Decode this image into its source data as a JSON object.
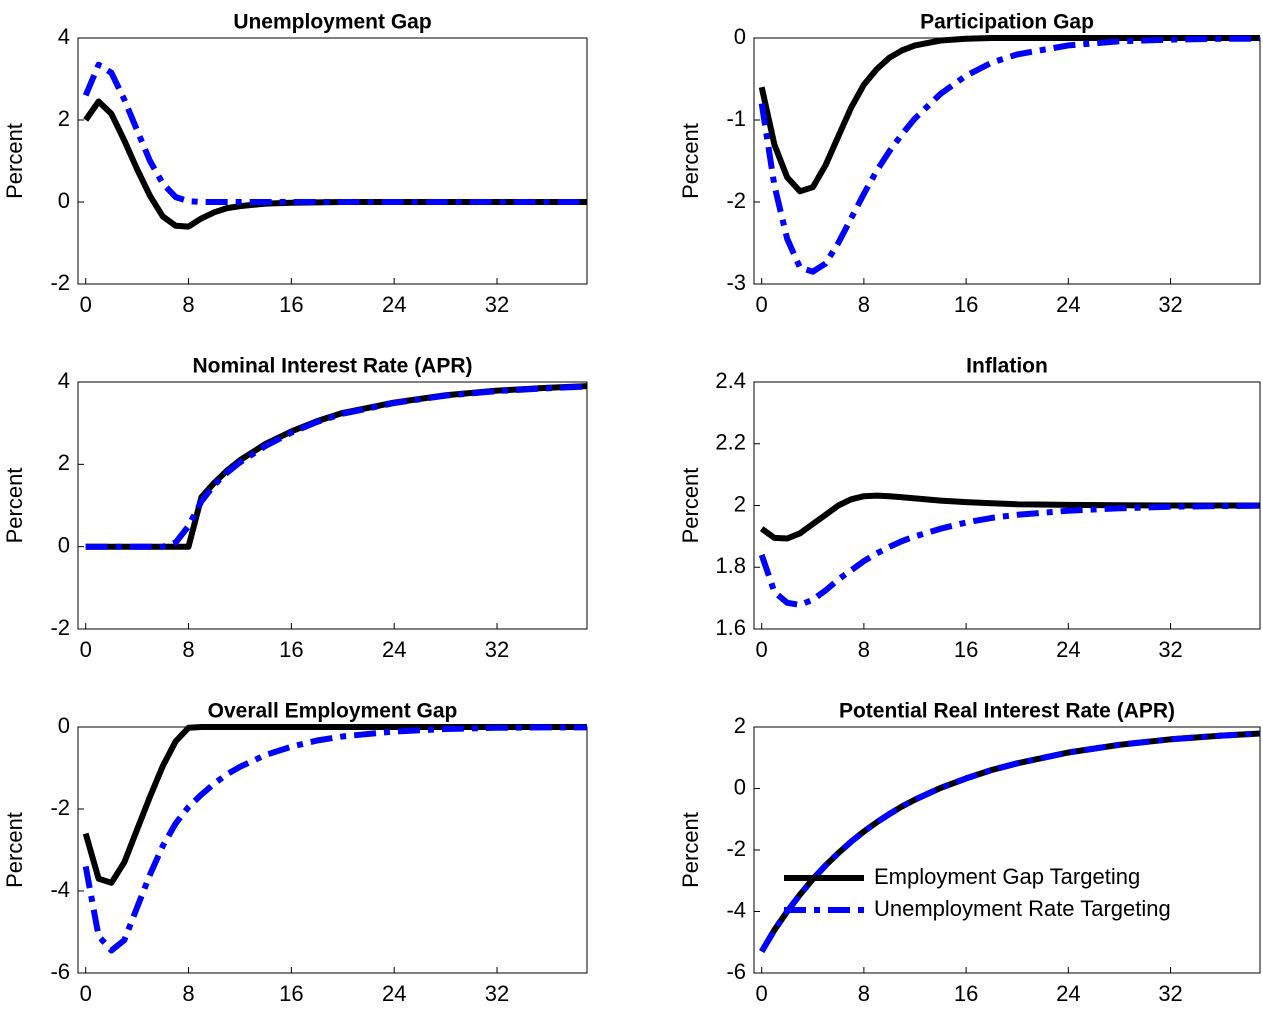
{
  "chart_data": [
    {
      "type": "line",
      "title": "Unemployment Gap",
      "ylabel": "Percent",
      "x": [
        0,
        1,
        2,
        3,
        4,
        5,
        6,
        7,
        8,
        9,
        10,
        11,
        12,
        14,
        16,
        18,
        20,
        24,
        28,
        32,
        36,
        39
      ],
      "xlim": [
        -0.6,
        39
      ],
      "xticks": [
        0,
        8,
        16,
        24,
        32
      ],
      "ylim": [
        -2,
        4
      ],
      "yticks": [
        -2,
        0,
        2,
        4
      ],
      "series": [
        {
          "color": "#000000",
          "dash": "solid",
          "values": [
            2.0,
            2.45,
            2.15,
            1.5,
            0.8,
            0.15,
            -0.35,
            -0.58,
            -0.6,
            -0.4,
            -0.25,
            -0.15,
            -0.1,
            -0.04,
            -0.02,
            -0.01,
            0,
            0,
            0,
            0,
            0,
            0
          ]
        },
        {
          "color": "#0000ff",
          "dash": "dashdot",
          "values": [
            2.6,
            3.35,
            3.15,
            2.5,
            1.75,
            1.0,
            0.45,
            0.12,
            0.02,
            0,
            0,
            0,
            0,
            0,
            0,
            0,
            0,
            0,
            0,
            0,
            0,
            0
          ]
        }
      ]
    },
    {
      "type": "line",
      "title": "Participation Gap",
      "ylabel": "Percent",
      "x": [
        0,
        1,
        2,
        3,
        4,
        5,
        6,
        7,
        8,
        9,
        10,
        11,
        12,
        14,
        16,
        18,
        20,
        24,
        28,
        32,
        36,
        39
      ],
      "xlim": [
        -0.6,
        39
      ],
      "xticks": [
        0,
        8,
        16,
        24,
        32
      ],
      "ylim": [
        -3,
        0
      ],
      "yticks": [
        -3,
        -2,
        -1,
        0
      ],
      "series": [
        {
          "color": "#000000",
          "dash": "solid",
          "values": [
            -0.6,
            -1.3,
            -1.7,
            -1.87,
            -1.82,
            -1.55,
            -1.2,
            -0.85,
            -0.57,
            -0.38,
            -0.24,
            -0.15,
            -0.09,
            -0.03,
            -0.01,
            0,
            0,
            0,
            0,
            0,
            0,
            0
          ]
        },
        {
          "color": "#0000ff",
          "dash": "dashdot",
          "values": [
            -0.8,
            -1.8,
            -2.45,
            -2.8,
            -2.85,
            -2.75,
            -2.5,
            -2.2,
            -1.9,
            -1.62,
            -1.38,
            -1.17,
            -0.98,
            -0.68,
            -0.46,
            -0.3,
            -0.2,
            -0.09,
            -0.04,
            -0.02,
            -0.01,
            -0.01
          ]
        }
      ]
    },
    {
      "type": "line",
      "title": "Nominal Interest Rate (APR)",
      "ylabel": "Percent",
      "x": [
        0,
        1,
        2,
        3,
        4,
        5,
        6,
        7,
        8,
        9,
        10,
        11,
        12,
        14,
        16,
        18,
        20,
        24,
        28,
        32,
        36,
        39
      ],
      "xlim": [
        -0.6,
        39
      ],
      "xticks": [
        0,
        8,
        16,
        24,
        32
      ],
      "ylim": [
        -2,
        4
      ],
      "yticks": [
        -2,
        0,
        2,
        4
      ],
      "series": [
        {
          "color": "#000000",
          "dash": "solid",
          "values": [
            0,
            0,
            0,
            0,
            0,
            0,
            0,
            0,
            0,
            1.2,
            1.55,
            1.85,
            2.1,
            2.5,
            2.8,
            3.05,
            3.25,
            3.5,
            3.68,
            3.79,
            3.86,
            3.9
          ]
        },
        {
          "color": "#0000ff",
          "dash": "dashdot",
          "values": [
            0,
            0,
            0,
            0,
            0,
            0,
            0,
            0.1,
            0.5,
            1.1,
            1.5,
            1.8,
            2.05,
            2.45,
            2.77,
            3.03,
            3.23,
            3.49,
            3.67,
            3.78,
            3.85,
            3.89
          ]
        }
      ]
    },
    {
      "type": "line",
      "title": "Inflation",
      "ylabel": "Percent",
      "x": [
        0,
        1,
        2,
        3,
        4,
        5,
        6,
        7,
        8,
        9,
        10,
        11,
        12,
        14,
        16,
        18,
        20,
        24,
        28,
        32,
        36,
        39
      ],
      "xlim": [
        -0.6,
        39
      ],
      "xticks": [
        0,
        8,
        16,
        24,
        32
      ],
      "ylim": [
        1.6,
        2.4
      ],
      "yticks": [
        1.6,
        1.8,
        2,
        2.2,
        2.4
      ],
      "series": [
        {
          "color": "#000000",
          "dash": "solid",
          "values": [
            1.925,
            1.895,
            1.893,
            1.91,
            1.94,
            1.97,
            2.0,
            2.02,
            2.03,
            2.032,
            2.03,
            2.027,
            2.023,
            2.016,
            2.011,
            2.007,
            2.004,
            2.002,
            2.001,
            2,
            2,
            2
          ]
        },
        {
          "color": "#0000ff",
          "dash": "dashdot",
          "values": [
            1.84,
            1.72,
            1.685,
            1.678,
            1.695,
            1.725,
            1.76,
            1.79,
            1.82,
            1.845,
            1.866,
            1.885,
            1.9,
            1.925,
            1.945,
            1.96,
            1.97,
            1.983,
            1.991,
            1.996,
            1.998,
            1.999
          ]
        }
      ]
    },
    {
      "type": "line",
      "title": "Overall Employment Gap",
      "ylabel": "Percent",
      "x": [
        0,
        1,
        2,
        3,
        4,
        5,
        6,
        7,
        8,
        9,
        10,
        11,
        12,
        14,
        16,
        18,
        20,
        24,
        28,
        32,
        36,
        39
      ],
      "xlim": [
        -0.6,
        39
      ],
      "xticks": [
        0,
        8,
        16,
        24,
        32
      ],
      "ylim": [
        -6,
        0
      ],
      "yticks": [
        -6,
        -4,
        -2,
        0
      ],
      "series": [
        {
          "color": "#000000",
          "dash": "solid",
          "values": [
            -2.6,
            -3.7,
            -3.8,
            -3.3,
            -2.5,
            -1.7,
            -0.95,
            -0.35,
            -0.02,
            0,
            0,
            0,
            0,
            0,
            0,
            0,
            0,
            0,
            0,
            0,
            0,
            0
          ]
        },
        {
          "color": "#0000ff",
          "dash": "dashdot",
          "values": [
            -3.4,
            -5.1,
            -5.45,
            -5.2,
            -4.4,
            -3.6,
            -2.9,
            -2.35,
            -1.95,
            -1.65,
            -1.38,
            -1.15,
            -0.97,
            -0.68,
            -0.48,
            -0.33,
            -0.23,
            -0.11,
            -0.05,
            -0.02,
            -0.01,
            -0.01
          ]
        }
      ]
    },
    {
      "type": "line",
      "title": "Potential Real Interest Rate (APR)",
      "ylabel": "Percent",
      "x": [
        0,
        1,
        2,
        3,
        4,
        5,
        6,
        7,
        8,
        9,
        10,
        11,
        12,
        14,
        16,
        18,
        20,
        24,
        28,
        32,
        36,
        39
      ],
      "xlim": [
        -0.6,
        39
      ],
      "xticks": [
        0,
        8,
        16,
        24,
        32
      ],
      "ylim": [
        -6,
        2
      ],
      "yticks": [
        -6,
        -4,
        -2,
        0,
        2
      ],
      "legend": "lower right",
      "series": [
        {
          "name": "Employment Gap Targeting",
          "color": "#000000",
          "dash": "solid",
          "values": [
            -5.3,
            -4.6,
            -4.0,
            -3.45,
            -2.95,
            -2.5,
            -2.1,
            -1.73,
            -1.4,
            -1.1,
            -0.83,
            -0.58,
            -0.36,
            0.02,
            0.33,
            0.6,
            0.82,
            1.17,
            1.42,
            1.6,
            1.72,
            1.79
          ]
        },
        {
          "name": "Unemployment Rate Targeting",
          "color": "#0000ff",
          "dash": "dashdot",
          "values": [
            -5.3,
            -4.6,
            -4.0,
            -3.45,
            -2.95,
            -2.5,
            -2.1,
            -1.73,
            -1.4,
            -1.1,
            -0.83,
            -0.58,
            -0.36,
            0.02,
            0.33,
            0.6,
            0.82,
            1.17,
            1.42,
            1.6,
            1.72,
            1.79
          ]
        }
      ]
    }
  ]
}
